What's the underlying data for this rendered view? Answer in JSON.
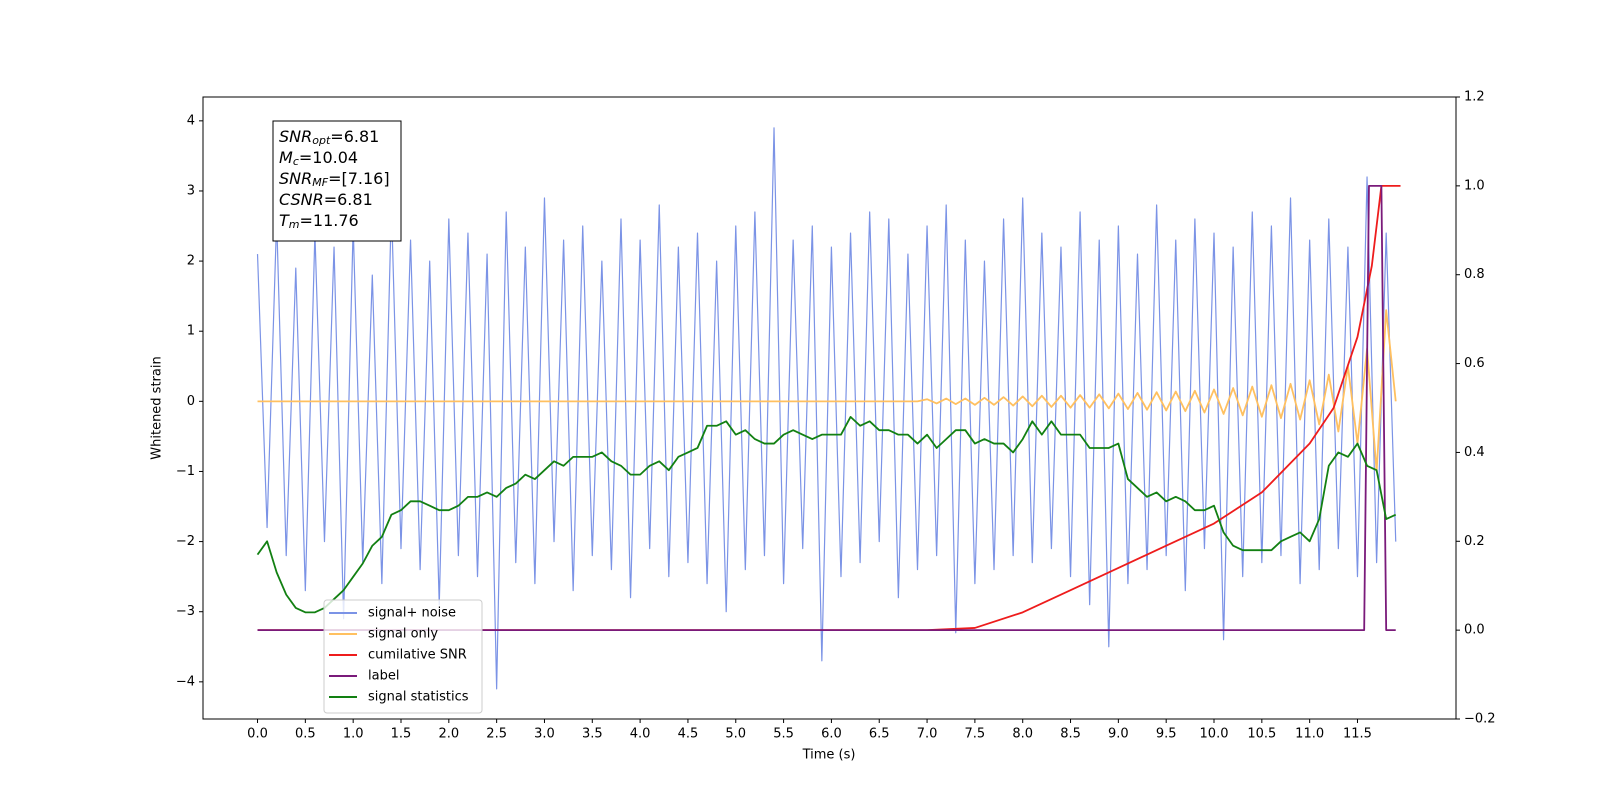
{
  "chart_data": {
    "type": "line",
    "xlabel": "Time (s)",
    "ylabel": "Whitened strain",
    "xlim": [
      -0.57,
      12.53
    ],
    "ylim": [
      -4.53,
      4.34
    ],
    "y2lim": [
      -0.2,
      1.2
    ],
    "xticks": [
      {
        "value": 0,
        "label": "0.0"
      },
      0.5,
      {
        "value": 1,
        "label": "1.0"
      },
      1.5,
      {
        "value": 2,
        "label": "2.0"
      },
      2.5,
      {
        "value": 3,
        "label": "3.0"
      },
      3.5,
      {
        "value": 4,
        "label": "4.0"
      },
      4.5,
      {
        "value": 5,
        "label": "5.0"
      },
      5.5,
      {
        "value": 6,
        "label": "6.0"
      },
      6.5,
      {
        "value": 7,
        "label": "7.0"
      },
      7.5,
      {
        "value": 8,
        "label": "8.0"
      },
      8.5,
      {
        "value": 9,
        "label": "9.0"
      },
      9.5,
      {
        "value": 10,
        "label": "10.0"
      },
      10.5,
      {
        "value": 11,
        "label": "11.0"
      },
      11.5
    ],
    "yticks": [
      {
        "value": -4,
        "label": "−4"
      },
      {
        "value": -3,
        "label": "−3"
      },
      {
        "value": -2,
        "label": "−2"
      },
      {
        "value": -1,
        "label": "−1"
      },
      0,
      1,
      2,
      3,
      4
    ],
    "y2ticks": [
      {
        "value": -0.2,
        "label": "−0.2"
      },
      {
        "value": 0,
        "label": "0.0"
      },
      0.2,
      0.4,
      0.6,
      0.8,
      {
        "value": 1,
        "label": "1.0"
      },
      1.2
    ],
    "legend": "lower left",
    "annotations": [
      {
        "main": "SNR",
        "sub": "opt",
        "rest": "=6.81"
      },
      {
        "main": "M",
        "sub": "c",
        "rest": "=10.04"
      },
      {
        "main": "SNR",
        "sub": "MF",
        "rest": "=[7.16]"
      },
      {
        "main": "CSNR",
        "sub": "",
        "rest": "=6.81"
      },
      {
        "main": "T",
        "sub": "m",
        "rest": "=11.76"
      }
    ],
    "x": [
      0,
      0.1,
      0.2,
      0.3,
      0.4,
      0.5,
      0.6,
      0.7,
      0.8,
      0.9,
      1,
      1.1,
      1.2,
      1.3,
      1.4,
      1.5,
      1.6,
      1.7,
      1.8,
      1.9,
      2,
      2.1,
      2.2,
      2.3,
      2.4,
      2.5,
      2.6,
      2.7,
      2.8,
      2.9,
      3,
      3.1,
      3.2,
      3.3,
      3.4,
      3.5,
      3.6,
      3.7,
      3.8,
      3.9,
      4,
      4.1,
      4.2,
      4.3,
      4.4,
      4.5,
      4.6,
      4.7,
      4.8,
      4.9,
      5,
      5.1,
      5.2,
      5.3,
      5.4,
      5.5,
      5.6,
      5.7,
      5.8,
      5.9,
      6,
      6.1,
      6.2,
      6.3,
      6.4,
      6.5,
      6.6,
      6.7,
      6.8,
      6.9,
      7,
      7.1,
      7.2,
      7.3,
      7.4,
      7.5,
      7.6,
      7.7,
      7.8,
      7.9,
      8,
      8.1,
      8.2,
      8.3,
      8.4,
      8.5,
      8.6,
      8.7,
      8.8,
      8.9,
      9,
      9.1,
      9.2,
      9.3,
      9.4,
      9.5,
      9.6,
      9.7,
      9.8,
      9.9,
      10,
      10.1,
      10.2,
      10.3,
      10.4,
      10.5,
      10.6,
      10.7,
      10.8,
      10.9,
      11,
      11.1,
      11.2,
      11.3,
      11.4,
      11.5,
      11.6,
      11.7,
      11.8,
      11.9
    ],
    "series": [
      {
        "name": "signal+ noise",
        "color": "#7b93e6",
        "values": [
          2.1,
          -1.8,
          2.6,
          -2.2,
          1.9,
          -2.7,
          2.4,
          -2.0,
          2.2,
          -3.1,
          2.5,
          -2.3,
          1.8,
          -2.6,
          2.8,
          -2.1,
          2.3,
          -2.4,
          2.0,
          -2.9,
          2.6,
          -2.2,
          2.4,
          -2.5,
          2.1,
          -4.1,
          2.7,
          -2.3,
          2.2,
          -2.6,
          2.9,
          -2.0,
          2.3,
          -2.7,
          2.5,
          -2.2,
          2.0,
          -2.4,
          2.6,
          -2.8,
          2.3,
          -2.1,
          2.8,
          -2.5,
          2.2,
          -2.3,
          2.4,
          -2.6,
          2.0,
          -3.0,
          2.5,
          -2.4,
          2.7,
          -2.2,
          3.9,
          -2.6,
          2.3,
          -2.1,
          2.5,
          -3.7,
          2.2,
          -2.5,
          2.4,
          -2.3,
          2.7,
          -2.0,
          2.6,
          -2.8,
          2.1,
          -2.4,
          2.5,
          -2.2,
          2.8,
          -3.3,
          2.3,
          -2.6,
          2.0,
          -2.4,
          2.6,
          -2.2,
          2.9,
          -2.3,
          2.4,
          -2.1,
          2.2,
          -2.5,
          2.7,
          -2.9,
          2.3,
          -3.5,
          2.5,
          -2.6,
          2.1,
          -2.4,
          2.8,
          -2.2,
          2.3,
          -2.7,
          2.6,
          -2.1,
          2.4,
          -3.4,
          2.2,
          -2.5,
          2.7,
          -2.3,
          2.5,
          -2.2,
          2.9,
          -2.6,
          2.3,
          -2.4,
          2.6,
          -2.1,
          2.2,
          -2.5,
          3.2,
          -2.3,
          2.4,
          -2.0
        ]
      },
      {
        "name": "signal only",
        "color": "#ffc060",
        "values": [
          0,
          0,
          0,
          0,
          0,
          0,
          0,
          0,
          0,
          0,
          0,
          0,
          0,
          0,
          0,
          0,
          0,
          0,
          0,
          0,
          0,
          0,
          0,
          0,
          0,
          0,
          0,
          0,
          0,
          0,
          0,
          0,
          0,
          0,
          0,
          0,
          0,
          0,
          0,
          0,
          0,
          0,
          0,
          0,
          0,
          0,
          0,
          0,
          0,
          0,
          0,
          0,
          0,
          0,
          0,
          0,
          0,
          0,
          0,
          0,
          0,
          0,
          0,
          0,
          0,
          0,
          0,
          0,
          0,
          0,
          0.03,
          -0.03,
          0.04,
          -0.04,
          0.04,
          -0.05,
          0.05,
          -0.05,
          0.06,
          -0.06,
          0.07,
          -0.07,
          0.08,
          -0.08,
          0.08,
          -0.09,
          0.09,
          -0.09,
          0.1,
          -0.1,
          0.11,
          -0.11,
          0.12,
          -0.12,
          0.13,
          -0.13,
          0.14,
          -0.14,
          0.15,
          -0.16,
          0.17,
          -0.18,
          0.19,
          -0.2,
          0.21,
          -0.22,
          0.23,
          -0.24,
          0.25,
          -0.26,
          0.3,
          -0.33,
          0.38,
          -0.43,
          0.5,
          -0.6,
          0.75,
          -1.0,
          1.3,
          0
        ]
      },
      {
        "name": "cumilative SNR",
        "color": "#ee1c1c",
        "axis": "y2",
        "x": [
          0,
          7.0,
          7.5,
          8.0,
          8.5,
          9.0,
          9.5,
          10.0,
          10.5,
          11.0,
          11.25,
          11.5,
          11.65,
          11.75,
          11.95
        ],
        "values": [
          0,
          0,
          0.005,
          0.04,
          0.09,
          0.14,
          0.19,
          0.24,
          0.31,
          0.42,
          0.5,
          0.66,
          0.82,
          1.0,
          1.0
        ]
      },
      {
        "name": "label",
        "color": "#7a1a7a",
        "axis": "y2",
        "x": [
          0,
          11.57,
          11.62,
          11.75,
          11.8,
          11.9
        ],
        "values": [
          0,
          0,
          1,
          1,
          0,
          0
        ]
      },
      {
        "name": "signal statistics",
        "color": "#128012",
        "axis": "y2",
        "values": [
          0.17,
          0.2,
          0.13,
          0.08,
          0.05,
          0.04,
          0.04,
          0.05,
          0.07,
          0.09,
          0.12,
          0.15,
          0.19,
          0.21,
          0.26,
          0.27,
          0.29,
          0.29,
          0.28,
          0.27,
          0.27,
          0.28,
          0.3,
          0.3,
          0.31,
          0.3,
          0.32,
          0.33,
          0.35,
          0.34,
          0.36,
          0.38,
          0.37,
          0.39,
          0.39,
          0.39,
          0.4,
          0.38,
          0.37,
          0.35,
          0.35,
          0.37,
          0.38,
          0.36,
          0.39,
          0.4,
          0.41,
          0.46,
          0.46,
          0.47,
          0.44,
          0.45,
          0.43,
          0.42,
          0.42,
          0.44,
          0.45,
          0.44,
          0.43,
          0.44,
          0.44,
          0.44,
          0.48,
          0.46,
          0.47,
          0.45,
          0.45,
          0.44,
          0.44,
          0.42,
          0.44,
          0.41,
          0.43,
          0.45,
          0.45,
          0.42,
          0.43,
          0.42,
          0.42,
          0.4,
          0.43,
          0.47,
          0.44,
          0.47,
          0.44,
          0.44,
          0.44,
          0.41,
          0.41,
          0.41,
          0.42,
          0.34,
          0.32,
          0.3,
          0.31,
          0.29,
          0.3,
          0.29,
          0.27,
          0.27,
          0.28,
          0.22,
          0.19,
          0.18,
          0.18,
          0.18,
          0.18,
          0.2,
          0.21,
          0.22,
          0.2,
          0.25,
          0.37,
          0.4,
          0.39,
          0.42,
          0.37,
          0.36,
          0.25,
          0.26
        ]
      }
    ]
  }
}
